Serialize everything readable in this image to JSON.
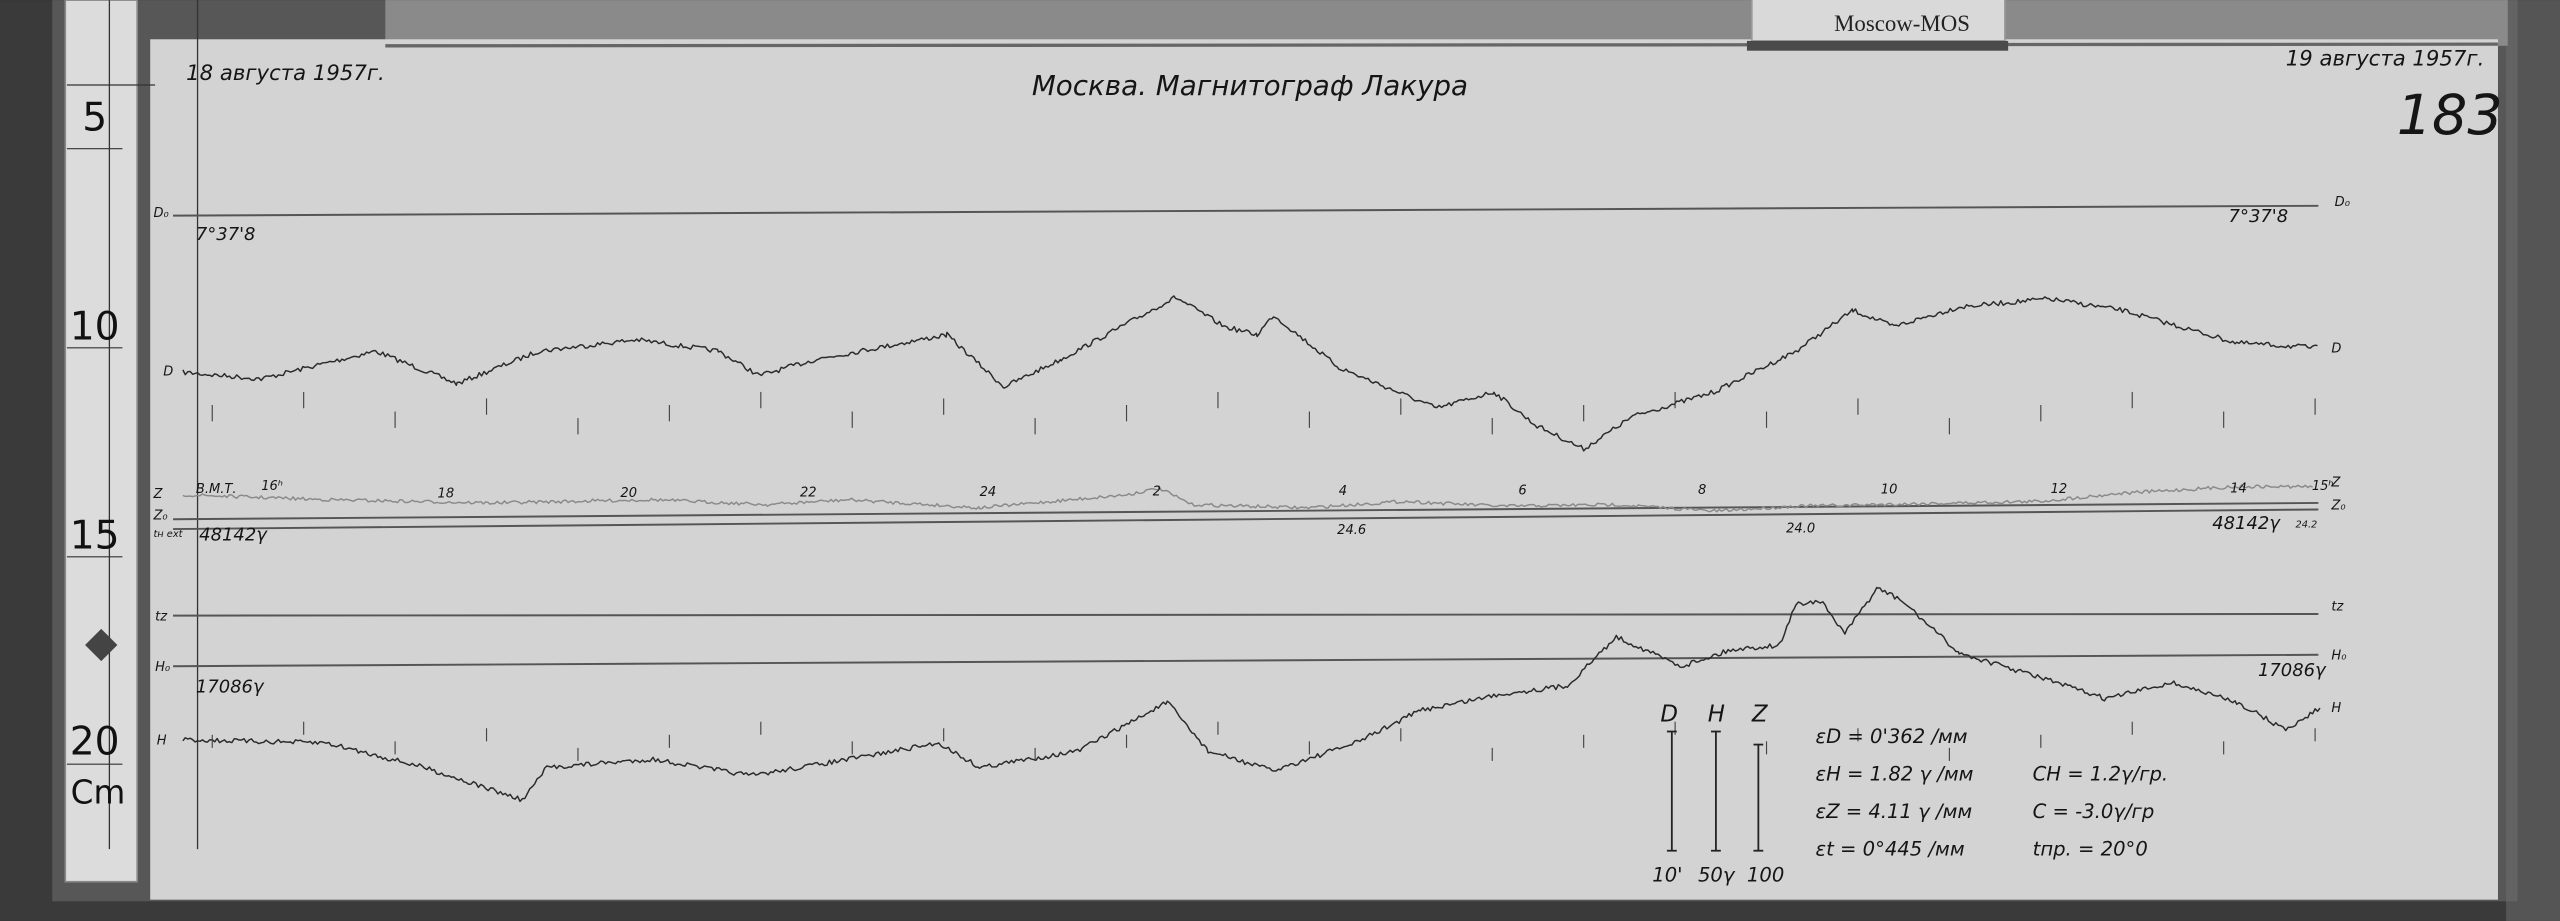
{
  "archive_label": "Moscow-MOS",
  "ruler": {
    "marks": [
      "5",
      "10",
      "15",
      "20"
    ],
    "unit": "Cm"
  },
  "header": {
    "date_start": "18 августа 1957г.",
    "title": "Москва. Магнитограф Лакура",
    "date_end": "19 августа 1957г.",
    "sheet_number": "183"
  },
  "traces": {
    "d0_label": "D₀",
    "d_label": "D",
    "z_label": "Z",
    "z0_label": "Z₀",
    "t_label": "tн ext",
    "tz_label": "tz",
    "h0_label": "H₀",
    "h_label": "H",
    "d0_value_left": "7°37'8",
    "d0_value_right": "7°37'8",
    "z0_value_left": "48142γ",
    "z0_value_right": "48142γ",
    "h0_value_left": "17086γ",
    "h0_value_right": "17086γ",
    "temp_left": "24.6",
    "temp_mid": "24.0",
    "temp_right": "24.2"
  },
  "time_axis": {
    "prefix": "В.М.Т.",
    "hours": [
      "16ʰ",
      "18",
      "20",
      "22",
      "24",
      "2",
      "4",
      "6",
      "8",
      "10",
      "12",
      "14",
      "15ʰ"
    ]
  },
  "scale_bars": {
    "labels": [
      "D",
      "H",
      "Z"
    ],
    "values": [
      "10'",
      "50γ",
      "100"
    ]
  },
  "constants": {
    "eps_d": "εD = 0'362 /мм",
    "eps_h": "εH = 1.82 γ /мм",
    "eps_z": "εZ = 4.11 γ /мм",
    "eps_t": "εt = 0°445 /мм",
    "c_h": "CH = 1.2γ/гр.",
    "c_z": "C = -3.0γ/гр",
    "t_pr": "tпр. = 20°0"
  }
}
